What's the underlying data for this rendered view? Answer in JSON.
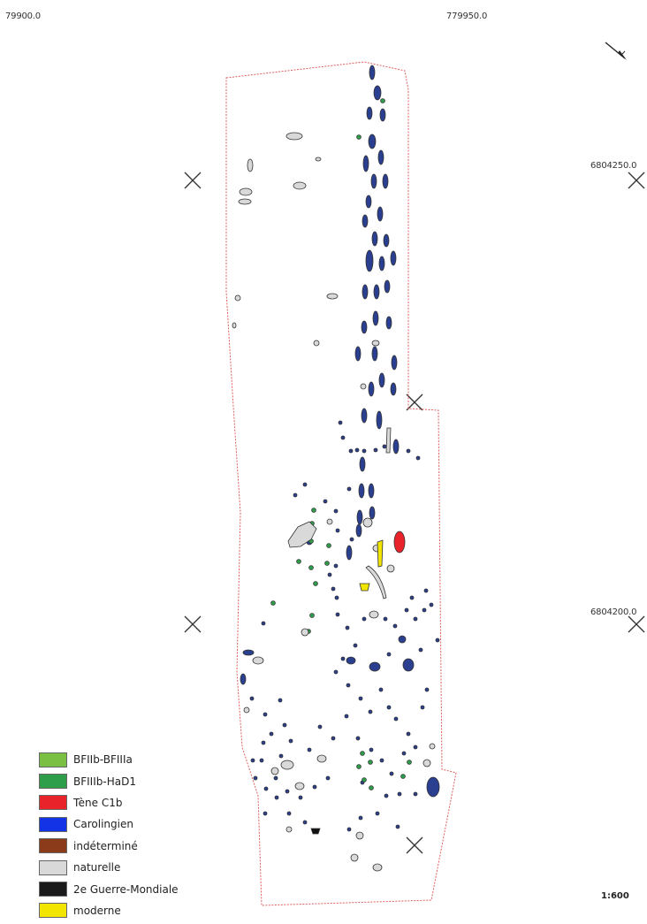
{
  "coordinates": {
    "x_left": "79900.0",
    "x_right": "779950.0",
    "y_upper": "6804250.0",
    "y_lower": "6804200.0"
  },
  "scale": "1:600",
  "north_arrow": {
    "icon": "north-arrow-icon"
  },
  "legend": [
    {
      "label": "BFIIb-BFIIIa",
      "color": "#7ac143"
    },
    {
      "label": "BFIIIb-HaD1",
      "color": "#2e9e4a"
    },
    {
      "label": "Tène C1b",
      "color": "#e8232a"
    },
    {
      "label": "Carolingien",
      "color": "#1233e6"
    },
    {
      "label": "indéterminé",
      "color": "#8b3a1a"
    },
    {
      "label": "naturelle",
      "color": "#d9d9d9"
    },
    {
      "label": "2e Guerre-Mondiale",
      "color": "#1a1a1a"
    },
    {
      "label": "moderne",
      "color": "#f2e600"
    }
  ],
  "map_colors": {
    "boundary": "#e06060",
    "feature_outline": "#333333",
    "carolingien_fill": "#2a3f8f",
    "naturelle_fill": "#d9d9d9",
    "bfiiib_fill": "#2e9e4a",
    "tene_fill": "#e8232a",
    "moderne_fill": "#f2e600",
    "ww2_fill": "#111111"
  }
}
